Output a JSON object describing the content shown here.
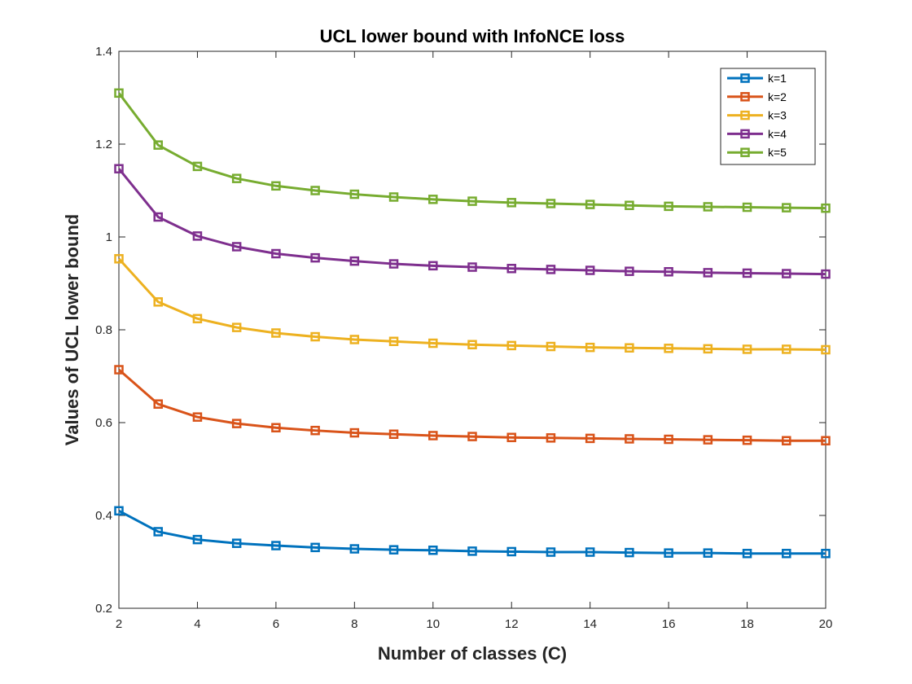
{
  "chart_data": {
    "type": "line",
    "title": "UCL lower bound with InfoNCE loss",
    "xlabel": "Number of classes (C)",
    "ylabel": "Values of UCL lower bound",
    "xlim": [
      2,
      20
    ],
    "ylim": [
      0.2,
      1.4
    ],
    "xticks": [
      2,
      4,
      6,
      8,
      10,
      12,
      14,
      16,
      18,
      20
    ],
    "xtick_labels": [
      "2",
      "4",
      "6",
      "8",
      "10",
      "12",
      "14",
      "16",
      "18",
      "20"
    ],
    "yticks": [
      0.2,
      0.4,
      0.6,
      0.8,
      1.0,
      1.2,
      1.4
    ],
    "ytick_labels": [
      "0.2",
      "0.4",
      "0.6",
      "0.8",
      "1",
      "1.2",
      "1.4"
    ],
    "grid": false,
    "legend_position": "top-right",
    "marker": "square",
    "x": [
      2,
      3,
      4,
      5,
      6,
      7,
      8,
      9,
      10,
      11,
      12,
      13,
      14,
      15,
      16,
      17,
      18,
      19,
      20
    ],
    "series": [
      {
        "name": "k=1",
        "color": "#0072BD",
        "values": [
          0.41,
          0.365,
          0.348,
          0.34,
          0.335,
          0.331,
          0.328,
          0.326,
          0.325,
          0.323,
          0.322,
          0.321,
          0.321,
          0.32,
          0.319,
          0.319,
          0.318,
          0.318,
          0.318
        ]
      },
      {
        "name": "k=2",
        "color": "#D95319",
        "values": [
          0.714,
          0.64,
          0.612,
          0.598,
          0.589,
          0.583,
          0.578,
          0.575,
          0.572,
          0.57,
          0.568,
          0.567,
          0.566,
          0.565,
          0.564,
          0.563,
          0.562,
          0.561,
          0.561
        ]
      },
      {
        "name": "k=3",
        "color": "#EDB120",
        "values": [
          0.953,
          0.86,
          0.824,
          0.805,
          0.793,
          0.785,
          0.779,
          0.775,
          0.771,
          0.768,
          0.766,
          0.764,
          0.762,
          0.761,
          0.76,
          0.759,
          0.758,
          0.758,
          0.757
        ]
      },
      {
        "name": "k=4",
        "color": "#7E2F8E",
        "values": [
          1.147,
          1.043,
          1.002,
          0.979,
          0.964,
          0.955,
          0.948,
          0.942,
          0.938,
          0.935,
          0.932,
          0.93,
          0.928,
          0.926,
          0.925,
          0.923,
          0.922,
          0.921,
          0.92
        ]
      },
      {
        "name": "k=5",
        "color": "#77AC30",
        "values": [
          1.31,
          1.198,
          1.152,
          1.126,
          1.11,
          1.1,
          1.092,
          1.086,
          1.081,
          1.077,
          1.074,
          1.072,
          1.07,
          1.068,
          1.066,
          1.065,
          1.064,
          1.063,
          1.062
        ]
      }
    ]
  }
}
